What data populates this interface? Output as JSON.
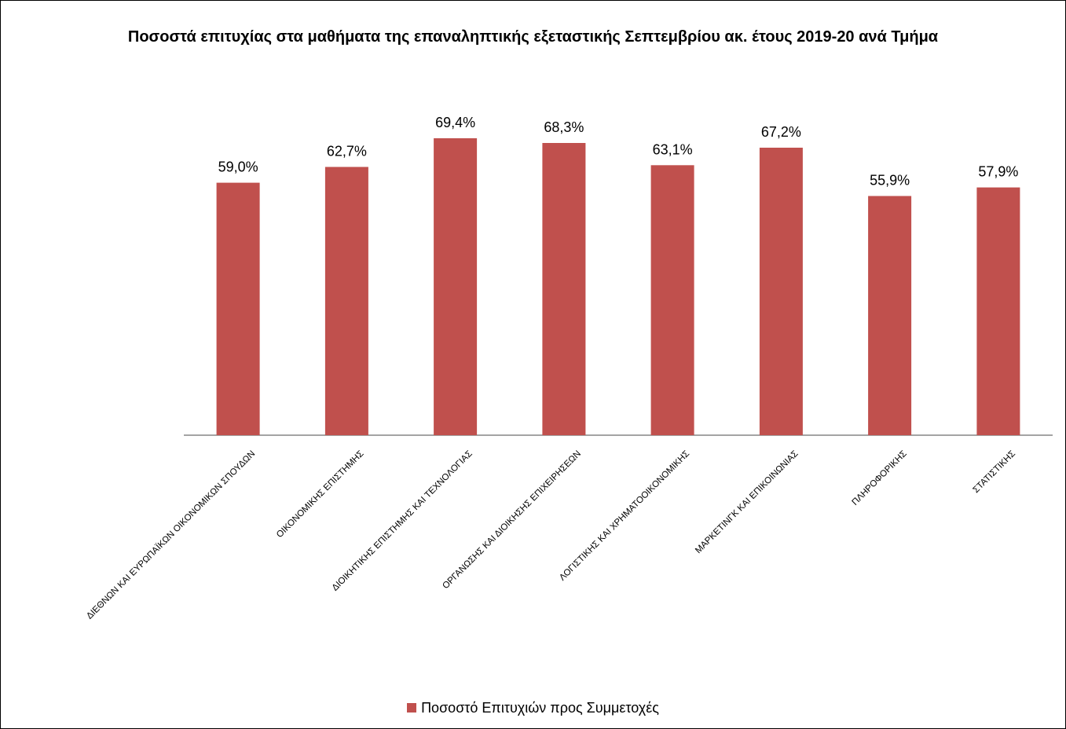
{
  "chart_data": {
    "type": "bar",
    "title": "Ποσοστά επιτυχίας στα μαθήματα της επαναληπτικής εξεταστικής Σεπτεμβρίου ακ. έτους 2019-20 ανά Τμήμα",
    "categories": [
      "ΔΙΕΘΝΩΝ ΚΑΙ ΕΥΡΩΠΑΪΚΩΝ ΟΙΚΟΝΟΜΙΚΩΝ ΣΠΟΥΔΩΝ",
      "ΟΙΚΟΝΟΜΙΚΗΣ ΕΠΙΣΤΗΜΗΣ",
      "ΔΙΟΙΚΗΤΙΚΗΣ ΕΠΙΣΤΗΜΗΣ ΚΑΙ ΤΕΧΝΟΛΟΓΙΑΣ",
      "ΟΡΓΑΝΩΣΗΣ ΚΑΙ ΔΙΟΙΚΗΣΗΣ ΕΠΙΧΕΙΡΗΣΕΩΝ",
      "ΛΟΓΙΣΤΙΚΗΣ ΚΑΙ ΧΡΗΜΑΤΟΟΙΚΟΝΟΜΙΚΗΣ",
      "ΜΑΡΚΕΤΙΝΓΚ ΚΑΙ ΕΠΙΚΟΙΝΩΝΙΑΣ",
      "ΠΛΗΡΟΦΟΡΙΚΗΣ",
      "ΣΤΑΤΙΣΤΙΚΗΣ"
    ],
    "series": [
      {
        "name": "Ποσοστό Επιτυχιών προς Συμμετοχές",
        "values": [
          59.0,
          62.7,
          69.4,
          68.3,
          63.1,
          67.2,
          55.9,
          57.9
        ],
        "labels": [
          "59,0%",
          "62,7%",
          "69,4%",
          "68,3%",
          "63,1%",
          "67,2%",
          "55,9%",
          "57,9%"
        ],
        "color": "#C0504D"
      }
    ],
    "ylim": [
      0,
      69.4
    ],
    "grid": false,
    "legend_position": "bottom"
  }
}
